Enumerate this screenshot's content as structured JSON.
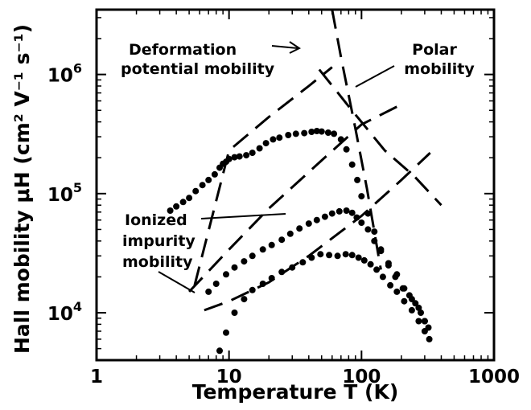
{
  "chart_data": {
    "type": "scatter",
    "title": "",
    "xlabel": "Temperature T (K)",
    "ylabel": "Hall mobility μH (cm² V⁻¹ s⁻¹)",
    "x_scale": "log",
    "y_scale": "log",
    "xlim": [
      1,
      1000
    ],
    "ylim": [
      4000,
      3500000
    ],
    "grid": false,
    "x_ticks": [
      {
        "value": 1,
        "label": "1"
      },
      {
        "value": 10,
        "label": "10"
      },
      {
        "value": 100,
        "label": "100"
      },
      {
        "value": 1000,
        "label": "1000"
      }
    ],
    "y_ticks": [
      {
        "value": 10000,
        "mantissa": "10",
        "exponent": "4"
      },
      {
        "value": 100000,
        "mantissa": "10",
        "exponent": "5"
      },
      {
        "value": 1000000,
        "mantissa": "10",
        "exponent": "6"
      }
    ],
    "annotations": [
      {
        "lines": [
          "Deformation",
          "potential mobility"
        ]
      },
      {
        "lines": [
          "Polar",
          "mobility"
        ]
      },
      {
        "lines": [
          "Ionized",
          "impurity",
          "mobility"
        ]
      }
    ],
    "series": [
      {
        "style": "dots",
        "points": [
          [
            3.6,
            72000
          ],
          [
            4.0,
            78000
          ],
          [
            4.5,
            85000
          ],
          [
            5.0,
            92000
          ],
          [
            5.6,
            105000
          ],
          [
            6.3,
            118000
          ],
          [
            7.0,
            130000
          ],
          [
            7.8,
            145000
          ],
          [
            8.5,
            165000
          ],
          [
            9.0,
            178000
          ],
          [
            9.5,
            185000
          ],
          [
            10.0,
            195000
          ],
          [
            11.0,
            202000
          ],
          [
            12.0,
            205000
          ],
          [
            13.5,
            210000
          ],
          [
            15.0,
            220000
          ],
          [
            17.0,
            240000
          ],
          [
            19.0,
            265000
          ],
          [
            21.5,
            285000
          ],
          [
            24.0,
            295000
          ],
          [
            28.0,
            310000
          ],
          [
            32.0,
            318000
          ],
          [
            37.0,
            322000
          ],
          [
            42.0,
            330000
          ],
          [
            46.0,
            335000
          ],
          [
            50.0,
            332000
          ],
          [
            56.0,
            325000
          ],
          [
            62.0,
            318000
          ],
          [
            70.0,
            285000
          ],
          [
            77.0,
            235000
          ],
          [
            85.0,
            175000
          ],
          [
            93.0,
            130000
          ],
          [
            100.0,
            95000
          ],
          [
            112.0,
            68000
          ],
          [
            125.0,
            48000
          ],
          [
            140.0,
            34000
          ],
          [
            160.0,
            25000
          ],
          [
            180.0,
            20000
          ],
          [
            205.0,
            16000
          ],
          [
            230.0,
            14000
          ],
          [
            255.0,
            12000
          ],
          [
            280.0,
            10000
          ],
          [
            300.0,
            8500
          ],
          [
            320.0,
            7500
          ]
        ]
      },
      {
        "style": "dots",
        "points": [
          [
            7.0,
            15000
          ],
          [
            8.0,
            17500
          ],
          [
            9.5,
            21000
          ],
          [
            11.0,
            24000
          ],
          [
            13.0,
            27000
          ],
          [
            15.0,
            30000
          ],
          [
            18.0,
            34000
          ],
          [
            21.0,
            37000
          ],
          [
            25.0,
            41000
          ],
          [
            29.0,
            46000
          ],
          [
            34.0,
            51000
          ],
          [
            40.0,
            56000
          ],
          [
            46.0,
            60000
          ],
          [
            53.0,
            64000
          ],
          [
            60.0,
            68000
          ],
          [
            68.0,
            71000
          ],
          [
            77.0,
            72000
          ],
          [
            85.0,
            69000
          ],
          [
            92.0,
            63000
          ],
          [
            100.0,
            57000
          ],
          [
            112.0,
            50000
          ],
          [
            125.0,
            40000
          ],
          [
            140.0,
            33000
          ],
          [
            160.0,
            26000
          ],
          [
            185.0,
            21000
          ],
          [
            210.0,
            16000
          ],
          [
            240.0,
            13000
          ],
          [
            270.0,
            11000
          ],
          [
            300.0,
            8500
          ]
        ]
      },
      {
        "style": "dots",
        "points": [
          [
            8.5,
            4800
          ],
          [
            9.5,
            6800
          ],
          [
            11.0,
            10000
          ],
          [
            13.0,
            13000
          ],
          [
            15.0,
            15500
          ],
          [
            18.0,
            17500
          ],
          [
            21.0,
            19500
          ],
          [
            25.0,
            22000
          ],
          [
            30.0,
            24000
          ],
          [
            36.0,
            26500
          ],
          [
            42.0,
            29000
          ],
          [
            49.0,
            31000
          ],
          [
            57.0,
            30500
          ],
          [
            66.0,
            30000
          ],
          [
            76.0,
            31000
          ],
          [
            85.0,
            30500
          ],
          [
            95.0,
            29000
          ],
          [
            105.0,
            27500
          ],
          [
            117.0,
            25500
          ],
          [
            130.0,
            23000
          ],
          [
            145.0,
            20000
          ],
          [
            165.0,
            17000
          ],
          [
            185.0,
            15000
          ],
          [
            210.0,
            12500
          ],
          [
            240.0,
            10500
          ],
          [
            270.0,
            8500
          ],
          [
            300.0,
            7000
          ],
          [
            325.0,
            6000
          ]
        ]
      },
      {
        "style": "dashed",
        "points": [
          [
            5.5,
            17000
          ],
          [
            10,
            230000
          ],
          [
            20,
            440000
          ],
          [
            40,
            800000
          ],
          [
            60,
            1150000
          ]
        ]
      },
      {
        "style": "dashed",
        "points": [
          [
            5.0,
            15000
          ],
          [
            10,
            34000
          ],
          [
            20,
            75000
          ],
          [
            50,
            190000
          ],
          [
            100,
            380000
          ],
          [
            200,
            560000
          ]
        ]
      },
      {
        "style": "dashed",
        "points": [
          [
            6.5,
            10500
          ],
          [
            10,
            12500
          ],
          [
            20,
            18000
          ],
          [
            40,
            30000
          ],
          [
            100,
            65000
          ],
          [
            200,
            130000
          ],
          [
            330,
            220000
          ]
        ]
      },
      {
        "style": "dashed",
        "points": [
          [
            48,
            1100000
          ],
          [
            80,
            540000
          ],
          [
            150,
            230000
          ],
          [
            250,
            140000
          ],
          [
            400,
            80000
          ]
        ]
      },
      {
        "style": "dashed",
        "points": [
          [
            60,
            3500000
          ],
          [
            70,
            1400000
          ],
          [
            90,
            350000
          ],
          [
            110,
            110000
          ],
          [
            140,
            23000
          ]
        ]
      }
    ]
  }
}
